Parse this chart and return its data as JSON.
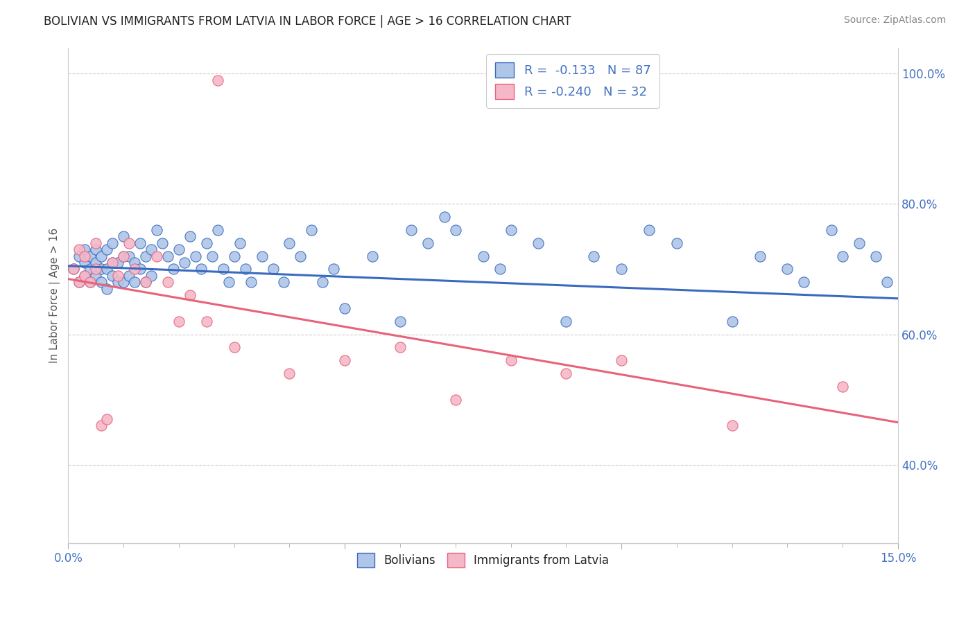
{
  "title": "BOLIVIAN VS IMMIGRANTS FROM LATVIA IN LABOR FORCE | AGE > 16 CORRELATION CHART",
  "source": "Source: ZipAtlas.com",
  "ylabel": "In Labor Force | Age > 16",
  "xlim": [
    0.0,
    0.15
  ],
  "ylim": [
    0.28,
    1.04
  ],
  "ytick_positions": [
    0.4,
    0.6,
    0.8,
    1.0
  ],
  "ytick_labels": [
    "40.0%",
    "60.0%",
    "80.0%",
    "100.0%"
  ],
  "blue_R": -0.133,
  "blue_N": 87,
  "pink_R": -0.24,
  "pink_N": 32,
  "blue_color": "#aec6e8",
  "pink_color": "#f4b8c8",
  "blue_line_color": "#3a6abf",
  "pink_line_color": "#e8627a",
  "legend_label_blue": "Bolivians",
  "legend_label_pink": "Immigrants from Latvia",
  "blue_trend_x0": 0.0,
  "blue_trend_y0": 0.705,
  "blue_trend_x1": 0.15,
  "blue_trend_y1": 0.655,
  "pink_trend_x0": 0.0,
  "pink_trend_y0": 0.685,
  "pink_trend_x1": 0.15,
  "pink_trend_y1": 0.465,
  "blue_x": [
    0.001,
    0.002,
    0.002,
    0.003,
    0.003,
    0.003,
    0.004,
    0.004,
    0.004,
    0.005,
    0.005,
    0.005,
    0.006,
    0.006,
    0.006,
    0.007,
    0.007,
    0.007,
    0.008,
    0.008,
    0.008,
    0.009,
    0.009,
    0.01,
    0.01,
    0.01,
    0.011,
    0.011,
    0.012,
    0.012,
    0.013,
    0.013,
    0.014,
    0.014,
    0.015,
    0.015,
    0.016,
    0.017,
    0.018,
    0.019,
    0.02,
    0.021,
    0.022,
    0.023,
    0.024,
    0.025,
    0.026,
    0.027,
    0.028,
    0.029,
    0.03,
    0.031,
    0.032,
    0.033,
    0.035,
    0.037,
    0.039,
    0.04,
    0.042,
    0.044,
    0.046,
    0.048,
    0.05,
    0.055,
    0.06,
    0.062,
    0.065,
    0.068,
    0.07,
    0.075,
    0.078,
    0.08,
    0.085,
    0.09,
    0.095,
    0.1,
    0.105,
    0.11,
    0.12,
    0.125,
    0.13,
    0.133,
    0.138,
    0.14,
    0.143,
    0.146,
    0.148
  ],
  "blue_y": [
    0.7,
    0.68,
    0.72,
    0.69,
    0.71,
    0.73,
    0.68,
    0.7,
    0.72,
    0.69,
    0.71,
    0.73,
    0.68,
    0.7,
    0.72,
    0.67,
    0.7,
    0.73,
    0.69,
    0.71,
    0.74,
    0.68,
    0.71,
    0.68,
    0.72,
    0.75,
    0.69,
    0.72,
    0.68,
    0.71,
    0.74,
    0.7,
    0.68,
    0.72,
    0.69,
    0.73,
    0.76,
    0.74,
    0.72,
    0.7,
    0.73,
    0.71,
    0.75,
    0.72,
    0.7,
    0.74,
    0.72,
    0.76,
    0.7,
    0.68,
    0.72,
    0.74,
    0.7,
    0.68,
    0.72,
    0.7,
    0.68,
    0.74,
    0.72,
    0.76,
    0.68,
    0.7,
    0.64,
    0.72,
    0.62,
    0.76,
    0.74,
    0.78,
    0.76,
    0.72,
    0.7,
    0.76,
    0.74,
    0.62,
    0.72,
    0.7,
    0.76,
    0.74,
    0.62,
    0.72,
    0.7,
    0.68,
    0.76,
    0.72,
    0.74,
    0.72,
    0.68
  ],
  "pink_x": [
    0.001,
    0.002,
    0.002,
    0.003,
    0.003,
    0.004,
    0.005,
    0.005,
    0.006,
    0.007,
    0.008,
    0.009,
    0.01,
    0.011,
    0.012,
    0.014,
    0.016,
    0.018,
    0.02,
    0.022,
    0.025,
    0.03,
    0.04,
    0.05,
    0.06,
    0.07,
    0.08,
    0.09,
    0.1,
    0.12,
    0.14,
    0.027
  ],
  "pink_y": [
    0.7,
    0.68,
    0.73,
    0.69,
    0.72,
    0.68,
    0.74,
    0.7,
    0.46,
    0.47,
    0.71,
    0.69,
    0.72,
    0.74,
    0.7,
    0.68,
    0.72,
    0.68,
    0.62,
    0.66,
    0.62,
    0.58,
    0.54,
    0.56,
    0.58,
    0.5,
    0.56,
    0.54,
    0.56,
    0.46,
    0.52,
    0.99
  ]
}
